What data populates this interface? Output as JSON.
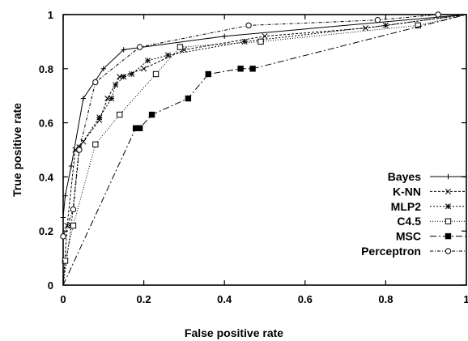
{
  "chart_data": {
    "type": "line",
    "title": "",
    "xlabel": "False positive rate",
    "ylabel": "True positive rate",
    "xlim": [
      0,
      1
    ],
    "ylim": [
      0,
      1
    ],
    "xticks": [
      "0",
      "0.2",
      "0.4",
      "0.6",
      "0.8",
      "1"
    ],
    "yticks": [
      "0",
      "0.2",
      "0.4",
      "0.6",
      "0.8",
      "1"
    ],
    "grid": false,
    "legend_position": "right",
    "series": [
      {
        "name": "Bayes",
        "dash": "",
        "marker": "plus",
        "points": [
          [
            0,
            0
          ],
          [
            0,
            0.25
          ],
          [
            0.005,
            0.33
          ],
          [
            0.02,
            0.44
          ],
          [
            0.05,
            0.69
          ],
          [
            0.1,
            0.8
          ],
          [
            0.15,
            0.87
          ],
          [
            0.4,
            0.92
          ],
          [
            1,
            1
          ]
        ]
      },
      {
        "name": "K-NN",
        "dash": "3 2",
        "marker": "x",
        "points": [
          [
            0,
            0
          ],
          [
            0.01,
            0.22
          ],
          [
            0.03,
            0.5
          ],
          [
            0.05,
            0.53
          ],
          [
            0.09,
            0.61
          ],
          [
            0.11,
            0.69
          ],
          [
            0.14,
            0.77
          ],
          [
            0.2,
            0.8
          ],
          [
            0.3,
            0.87
          ],
          [
            0.5,
            0.92
          ],
          [
            0.75,
            0.95
          ],
          [
            1,
            1
          ]
        ]
      },
      {
        "name": "MLP2",
        "dash": "2 2",
        "marker": "asterisk",
        "points": [
          [
            0,
            0
          ],
          [
            0.02,
            0.22
          ],
          [
            0.04,
            0.51
          ],
          [
            0.09,
            0.62
          ],
          [
            0.12,
            0.69
          ],
          [
            0.13,
            0.74
          ],
          [
            0.15,
            0.77
          ],
          [
            0.17,
            0.78
          ],
          [
            0.21,
            0.83
          ],
          [
            0.26,
            0.85
          ],
          [
            0.45,
            0.9
          ],
          [
            0.8,
            0.96
          ],
          [
            1,
            1
          ]
        ]
      },
      {
        "name": "C4.5",
        "dash": "1 2",
        "marker": "square-open",
        "points": [
          [
            0,
            0
          ],
          [
            0.005,
            0.09
          ],
          [
            0.025,
            0.22
          ],
          [
            0.08,
            0.52
          ],
          [
            0.14,
            0.63
          ],
          [
            0.23,
            0.78
          ],
          [
            0.29,
            0.88
          ],
          [
            0.49,
            0.9
          ],
          [
            0.88,
            0.96
          ],
          [
            1,
            1
          ]
        ]
      },
      {
        "name": "MSC",
        "dash": "8 3 2 3",
        "marker": "square-filled",
        "points": [
          [
            0,
            0
          ],
          [
            0.18,
            0.58
          ],
          [
            0.19,
            0.58
          ],
          [
            0.22,
            0.63
          ],
          [
            0.31,
            0.69
          ],
          [
            0.36,
            0.78
          ],
          [
            0.44,
            0.8
          ],
          [
            0.47,
            0.8
          ],
          [
            1,
            1
          ]
        ]
      },
      {
        "name": "Perceptron",
        "dash": "4 2 1 2",
        "marker": "circle-open",
        "points": [
          [
            0,
            0
          ],
          [
            0,
            0.18
          ],
          [
            0.025,
            0.28
          ],
          [
            0.04,
            0.5
          ],
          [
            0.08,
            0.75
          ],
          [
            0.19,
            0.88
          ],
          [
            0.46,
            0.96
          ],
          [
            0.78,
            0.98
          ],
          [
            0.93,
            1
          ],
          [
            1,
            1
          ]
        ]
      }
    ]
  }
}
